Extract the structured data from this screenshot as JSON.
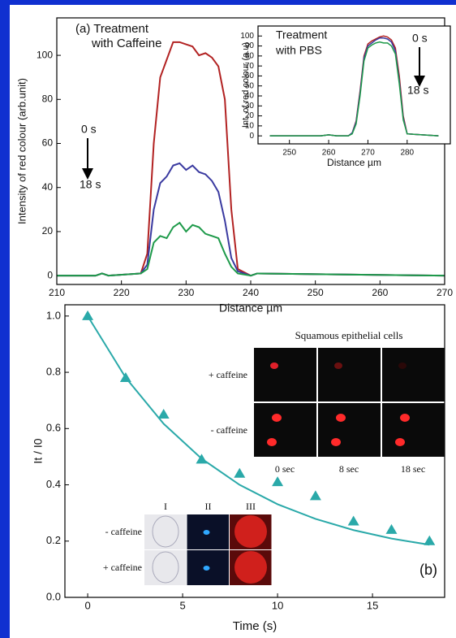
{
  "chart_data": [
    {
      "type": "line",
      "x_label": "Distance µm",
      "y_label": "Intensity of red colour (arb.unit)",
      "annotations": [
        "(a) Treatment",
        "with Caffeine",
        "0 s",
        "18 s"
      ],
      "x": [
        210,
        216,
        217,
        218,
        223,
        224,
        225,
        226,
        227,
        228,
        229,
        230,
        231,
        232,
        233,
        234,
        235,
        236,
        237,
        238,
        240,
        241,
        270
      ],
      "series": [
        {
          "color": "#b22222",
          "values": [
            0,
            0,
            1,
            0,
            1,
            10,
            60,
            90,
            98,
            106,
            106,
            105,
            104,
            100,
            101,
            99,
            95,
            80,
            30,
            3,
            0,
            1,
            0
          ]
        },
        {
          "color": "#3a3aa0",
          "values": [
            0,
            0,
            1,
            0,
            1,
            5,
            30,
            42,
            45,
            50,
            51,
            48,
            50,
            47,
            46,
            43,
            38,
            25,
            8,
            2,
            0,
            1,
            0
          ]
        },
        {
          "color": "#1e9a4a",
          "values": [
            0,
            0,
            1,
            0,
            1,
            3,
            15,
            18,
            17,
            22,
            24,
            20,
            23,
            22,
            19,
            18,
            17,
            10,
            4,
            1,
            0,
            1,
            0
          ]
        }
      ],
      "xlim": [
        210,
        270
      ],
      "xticks": [
        210,
        220,
        230,
        240,
        250,
        260,
        270
      ],
      "ylim": [
        -4,
        117
      ],
      "yticks": [
        0,
        20,
        40,
        60,
        80,
        100
      ]
    },
    {
      "type": "line",
      "x_label": "Distance µm",
      "y_label": "Int. of red colour (a.u)",
      "annotations": [
        "Treatment",
        "with PBS",
        "0 s",
        "18 s"
      ],
      "x": [
        245,
        258,
        260,
        262,
        265,
        266,
        267,
        268,
        269,
        270,
        271,
        272,
        273,
        274,
        275,
        276,
        277,
        278,
        279,
        280,
        288
      ],
      "series": [
        {
          "color": "#b22222",
          "values": [
            0,
            0,
            1,
            0,
            0,
            3,
            15,
            45,
            80,
            92,
            95,
            97,
            99,
            100,
            99,
            96,
            88,
            60,
            20,
            2,
            0
          ]
        },
        {
          "color": "#3a3aa0",
          "values": [
            0,
            0,
            1,
            0,
            0,
            3,
            14,
            43,
            78,
            90,
            93,
            96,
            98,
            98,
            97,
            94,
            85,
            55,
            18,
            2,
            0
          ]
        },
        {
          "color": "#1e9a4a",
          "values": [
            0,
            0,
            1,
            0,
            0,
            2,
            12,
            40,
            75,
            88,
            91,
            93,
            94,
            93,
            93,
            90,
            82,
            52,
            16,
            2,
            0
          ]
        }
      ],
      "xlim": [
        242,
        291
      ],
      "xticks": [
        250,
        260,
        270,
        280
      ],
      "ylim": [
        -8,
        110
      ],
      "yticks": [
        0,
        10,
        20,
        30,
        40,
        50,
        60,
        70,
        80,
        90,
        100
      ]
    },
    {
      "type": "scatter",
      "x_label": "Time (s)",
      "y_label": "It / I0",
      "annotations": [
        "(b)"
      ],
      "series": [
        {
          "type": "scatter",
          "color": "#2aa9a9",
          "x": [
            0,
            2,
            4,
            6,
            8,
            10,
            12,
            14,
            16,
            18
          ],
          "values": [
            1.0,
            0.78,
            0.65,
            0.49,
            0.44,
            0.41,
            0.36,
            0.27,
            0.24,
            0.2
          ]
        },
        {
          "type": "line",
          "color": "#2aa9a9",
          "x": [
            0,
            2,
            4,
            6,
            8,
            10,
            12,
            14,
            16,
            18
          ],
          "values": [
            1.0,
            0.781,
            0.617,
            0.493,
            0.4,
            0.331,
            0.279,
            0.239,
            0.209,
            0.187
          ]
        }
      ],
      "xlim": [
        -1.2,
        18.8
      ],
      "xticks": [
        0,
        5,
        10,
        15
      ],
      "ylim": [
        0,
        1.04
      ],
      "yticks": [
        {
          "value": 0,
          "label": "0.0"
        },
        0.2,
        0.4,
        0.6,
        0.8,
        {
          "value": 1,
          "label": "1.0"
        }
      ],
      "micrograph_top": {
        "title": "Squamous epithelial cells",
        "rows": [
          "+ caffeine",
          "- caffeine"
        ],
        "columns": [
          "0 sec",
          "8 sec",
          "18 sec"
        ]
      },
      "micrograph_bottom": {
        "rows": [
          "- caffeine",
          "+ caffeine"
        ],
        "columns": [
          "I",
          "II",
          "III"
        ]
      }
    }
  ]
}
